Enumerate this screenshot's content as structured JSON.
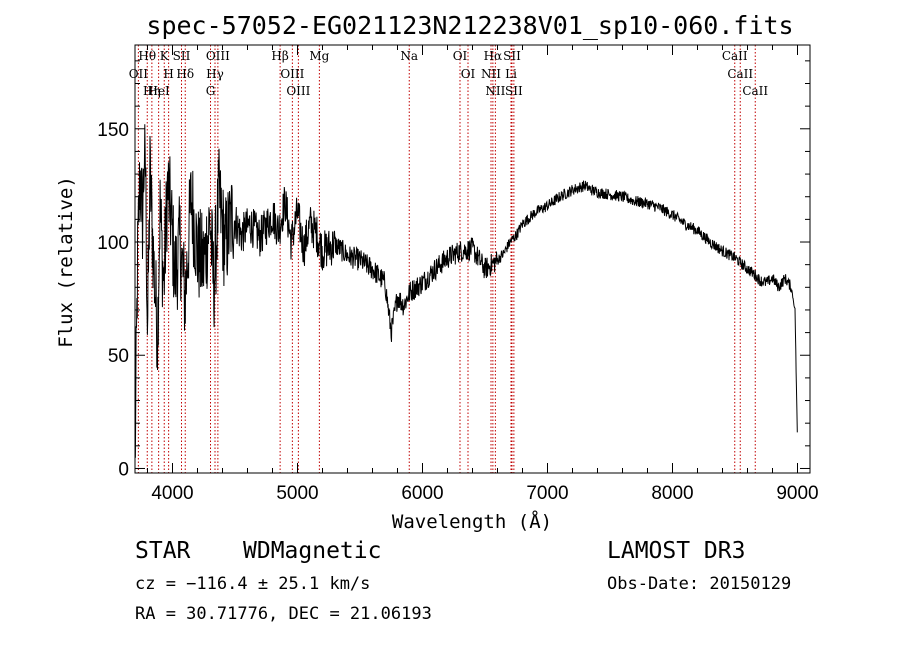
{
  "chart_data": {
    "type": "line",
    "title": "spec-57052-EG021123N212238V01_sp10-060.fits",
    "xlabel": "Wavelength (Å)",
    "ylabel": "Flux (relative)",
    "xlim": [
      3700,
      9100
    ],
    "ylim": [
      -2,
      187
    ],
    "xticks": [
      4000,
      5000,
      6000,
      7000,
      8000,
      9000
    ],
    "yticks": [
      0,
      50,
      100,
      150
    ],
    "series": [
      {
        "name": "flux",
        "x": [
          3700,
          3720,
          3740,
          3760,
          3780,
          3800,
          3820,
          3850,
          3880,
          3900,
          3930,
          3960,
          3990,
          4020,
          4060,
          4100,
          4150,
          4200,
          4250,
          4300,
          4330,
          4370,
          4420,
          4480,
          4550,
          4620,
          4700,
          4800,
          4850,
          4900,
          4950,
          5000,
          5050,
          5100,
          5150,
          5200,
          5300,
          5400,
          5500,
          5600,
          5700,
          5750,
          5800,
          5850,
          5900,
          5950,
          6000,
          6100,
          6200,
          6300,
          6400,
          6500,
          6550,
          6600,
          6650,
          6700,
          6750,
          6800,
          6900,
          7000,
          7100,
          7200,
          7300,
          7350,
          7400,
          7500,
          7600,
          7700,
          7800,
          7900,
          8000,
          8100,
          8200,
          8300,
          8400,
          8500,
          8600,
          8650,
          8700,
          8750,
          8800,
          8850,
          8900,
          8950,
          8980,
          9000
        ],
        "y": [
          0,
          90,
          130,
          110,
          150,
          60,
          130,
          90,
          60,
          115,
          80,
          125,
          110,
          85,
          100,
          75,
          120,
          95,
          90,
          110,
          80,
          120,
          98,
          112,
          103,
          108,
          102,
          112,
          105,
          118,
          100,
          113,
          97,
          108,
          104,
          96,
          99,
          94,
          92,
          88,
          82,
          60,
          76,
          72,
          78,
          80,
          82,
          88,
          93,
          96,
          97,
          88,
          90,
          92,
          95,
          100,
          103,
          108,
          113,
          116,
          120,
          123,
          125,
          123,
          122,
          121,
          120,
          118,
          117,
          115,
          112,
          108,
          105,
          100,
          96,
          93,
          88,
          86,
          83,
          82,
          84,
          80,
          84,
          80,
          70,
          10
        ]
      }
    ],
    "annotation_lines": [
      {
        "label": "Hθ",
        "wavelength": 3798
      },
      {
        "label": "OII",
        "wavelength": 3727
      },
      {
        "label": "K",
        "wavelength": 3934
      },
      {
        "label": "H",
        "wavelength": 3969
      },
      {
        "label": "Hη",
        "wavelength": 3835
      },
      {
        "label": "HeI",
        "wavelength": 3889
      },
      {
        "label": "SII",
        "wavelength": 4072
      },
      {
        "label": "Hδ",
        "wavelength": 4102
      },
      {
        "label": "OIII",
        "wavelength": 4363
      },
      {
        "label": "Hγ",
        "wavelength": 4340
      },
      {
        "label": "G",
        "wavelength": 4304
      },
      {
        "label": "Hβ",
        "wavelength": 4861
      },
      {
        "label": "OIII",
        "wavelength": 4959
      },
      {
        "label": "OIII",
        "wavelength": 5007
      },
      {
        "label": "Mg",
        "wavelength": 5175
      },
      {
        "label": "Na",
        "wavelength": 5894
      },
      {
        "label": "OI",
        "wavelength": 6300
      },
      {
        "label": "OI",
        "wavelength": 6364
      },
      {
        "label": "Hα",
        "wavelength": 6563
      },
      {
        "label": "NII",
        "wavelength": 6548
      },
      {
        "label": "NII",
        "wavelength": 6583
      },
      {
        "label": "SII",
        "wavelength": 6716
      },
      {
        "label": "Li",
        "wavelength": 6708
      },
      {
        "label": "SII",
        "wavelength": 6731
      },
      {
        "label": "CaII",
        "wavelength": 8498
      },
      {
        "label": "CaII",
        "wavelength": 8542
      },
      {
        "label": "CaII",
        "wavelength": 8662
      }
    ]
  },
  "info": {
    "class": "STAR",
    "subclass": "WDMagnetic",
    "survey": "LAMOST DR3",
    "cz": "cz = −116.4 ± 25.1 km/s",
    "obs_date": "Obs-Date: 20150129",
    "coords": "RA =  30.71776, DEC =  21.06193"
  }
}
